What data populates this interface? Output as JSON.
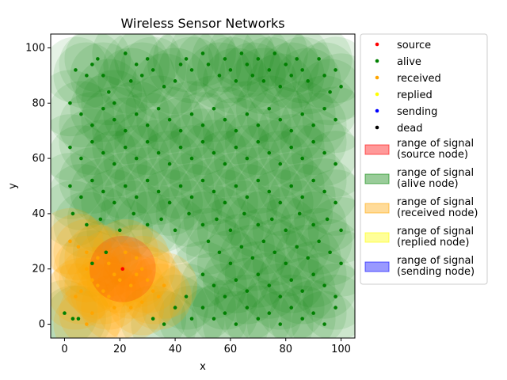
{
  "chart_data": {
    "type": "scatter",
    "title": "Wireless Sensor Networks",
    "xlabel": "x",
    "ylabel": "y",
    "xlim": [
      -5,
      105
    ],
    "ylim": [
      -5,
      105
    ],
    "xticks": [
      "0",
      "20",
      "40",
      "60",
      "80",
      "100"
    ],
    "yticks": [
      "0",
      "20",
      "40",
      "60",
      "80",
      "100"
    ],
    "grid": false,
    "legend_position": "outside-right",
    "signal_range": 12,
    "series": [
      {
        "name": "source",
        "color": "#ff0000",
        "points": [
          [
            21,
            20
          ]
        ]
      },
      {
        "name": "alive",
        "color": "#008000",
        "points": [
          [
            4,
            92
          ],
          [
            8,
            90
          ],
          [
            10,
            94
          ],
          [
            12,
            96
          ],
          [
            14,
            90
          ],
          [
            16,
            84
          ],
          [
            18,
            80
          ],
          [
            22,
            98
          ],
          [
            24,
            88
          ],
          [
            26,
            94
          ],
          [
            28,
            90
          ],
          [
            30,
            96
          ],
          [
            32,
            92
          ],
          [
            36,
            86
          ],
          [
            40,
            88
          ],
          [
            42,
            94
          ],
          [
            44,
            96
          ],
          [
            46,
            92
          ],
          [
            50,
            98
          ],
          [
            52,
            94
          ],
          [
            56,
            90
          ],
          [
            58,
            96
          ],
          [
            60,
            92
          ],
          [
            62,
            88
          ],
          [
            64,
            98
          ],
          [
            66,
            94
          ],
          [
            68,
            90
          ],
          [
            70,
            96
          ],
          [
            72,
            88
          ],
          [
            74,
            92
          ],
          [
            76,
            98
          ],
          [
            78,
            86
          ],
          [
            80,
            94
          ],
          [
            82,
            90
          ],
          [
            84,
            96
          ],
          [
            86,
            92
          ],
          [
            88,
            88
          ],
          [
            92,
            96
          ],
          [
            94,
            90
          ],
          [
            96,
            84
          ],
          [
            98,
            92
          ],
          [
            100,
            86
          ],
          [
            2,
            80
          ],
          [
            6,
            76
          ],
          [
            10,
            72
          ],
          [
            14,
            78
          ],
          [
            18,
            74
          ],
          [
            22,
            70
          ],
          [
            26,
            76
          ],
          [
            30,
            72
          ],
          [
            34,
            78
          ],
          [
            38,
            74
          ],
          [
            42,
            70
          ],
          [
            46,
            76
          ],
          [
            50,
            72
          ],
          [
            54,
            78
          ],
          [
            58,
            74
          ],
          [
            62,
            70
          ],
          [
            66,
            76
          ],
          [
            70,
            72
          ],
          [
            74,
            78
          ],
          [
            78,
            74
          ],
          [
            82,
            70
          ],
          [
            86,
            76
          ],
          [
            90,
            72
          ],
          [
            94,
            78
          ],
          [
            98,
            74
          ],
          [
            2,
            64
          ],
          [
            6,
            60
          ],
          [
            10,
            66
          ],
          [
            14,
            62
          ],
          [
            18,
            58
          ],
          [
            22,
            64
          ],
          [
            26,
            60
          ],
          [
            30,
            66
          ],
          [
            34,
            62
          ],
          [
            38,
            58
          ],
          [
            42,
            64
          ],
          [
            46,
            60
          ],
          [
            50,
            66
          ],
          [
            54,
            62
          ],
          [
            58,
            58
          ],
          [
            62,
            64
          ],
          [
            66,
            60
          ],
          [
            70,
            66
          ],
          [
            74,
            62
          ],
          [
            78,
            58
          ],
          [
            82,
            64
          ],
          [
            86,
            60
          ],
          [
            90,
            66
          ],
          [
            94,
            62
          ],
          [
            98,
            58
          ],
          [
            2,
            50
          ],
          [
            6,
            46
          ],
          [
            10,
            52
          ],
          [
            14,
            48
          ],
          [
            18,
            44
          ],
          [
            22,
            50
          ],
          [
            26,
            46
          ],
          [
            30,
            52
          ],
          [
            34,
            48
          ],
          [
            38,
            44
          ],
          [
            42,
            50
          ],
          [
            46,
            46
          ],
          [
            50,
            52
          ],
          [
            54,
            48
          ],
          [
            58,
            44
          ],
          [
            62,
            50
          ],
          [
            66,
            46
          ],
          [
            70,
            52
          ],
          [
            74,
            48
          ],
          [
            78,
            44
          ],
          [
            82,
            50
          ],
          [
            86,
            46
          ],
          [
            90,
            52
          ],
          [
            94,
            48
          ],
          [
            98,
            44
          ],
          [
            3,
            40
          ],
          [
            8,
            36
          ],
          [
            13,
            38
          ],
          [
            20,
            34
          ],
          [
            25,
            40
          ],
          [
            30,
            36
          ],
          [
            35,
            38
          ],
          [
            40,
            34
          ],
          [
            45,
            40
          ],
          [
            50,
            36
          ],
          [
            55,
            38
          ],
          [
            60,
            34
          ],
          [
            65,
            40
          ],
          [
            70,
            36
          ],
          [
            75,
            38
          ],
          [
            80,
            34
          ],
          [
            85,
            40
          ],
          [
            90,
            36
          ],
          [
            95,
            38
          ],
          [
            100,
            34
          ],
          [
            52,
            30
          ],
          [
            56,
            26
          ],
          [
            60,
            22
          ],
          [
            64,
            28
          ],
          [
            68,
            24
          ],
          [
            72,
            30
          ],
          [
            76,
            26
          ],
          [
            80,
            22
          ],
          [
            84,
            28
          ],
          [
            88,
            24
          ],
          [
            92,
            30
          ],
          [
            96,
            26
          ],
          [
            100,
            22
          ],
          [
            50,
            18
          ],
          [
            54,
            14
          ],
          [
            58,
            10
          ],
          [
            62,
            16
          ],
          [
            66,
            12
          ],
          [
            70,
            18
          ],
          [
            74,
            14
          ],
          [
            78,
            10
          ],
          [
            82,
            16
          ],
          [
            86,
            12
          ],
          [
            90,
            18
          ],
          [
            94,
            14
          ],
          [
            98,
            10
          ],
          [
            50,
            6
          ],
          [
            54,
            2
          ],
          [
            58,
            4
          ],
          [
            62,
            0
          ],
          [
            66,
            6
          ],
          [
            70,
            2
          ],
          [
            74,
            4
          ],
          [
            78,
            0
          ],
          [
            82,
            6
          ],
          [
            86,
            2
          ],
          [
            90,
            4
          ],
          [
            94,
            0
          ],
          [
            98,
            6
          ],
          [
            40,
            6
          ],
          [
            44,
            10
          ],
          [
            46,
            2
          ],
          [
            36,
            0
          ],
          [
            32,
            2
          ],
          [
            0,
            4
          ],
          [
            3,
            2
          ],
          [
            5,
            2
          ],
          [
            10,
            22
          ],
          [
            15,
            26
          ]
        ]
      },
      {
        "name": "received",
        "color": "#ffa500",
        "points": [
          [
            2,
            30
          ],
          [
            5,
            28
          ],
          [
            8,
            26
          ],
          [
            12,
            24
          ],
          [
            16,
            22
          ],
          [
            18,
            18
          ],
          [
            20,
            16
          ],
          [
            24,
            14
          ],
          [
            26,
            18
          ],
          [
            28,
            20
          ],
          [
            30,
            16
          ],
          [
            32,
            12
          ],
          [
            34,
            10
          ],
          [
            36,
            14
          ],
          [
            8,
            20
          ],
          [
            10,
            16
          ],
          [
            12,
            14
          ],
          [
            14,
            12
          ],
          [
            6,
            12
          ],
          [
            4,
            10
          ],
          [
            22,
            26
          ],
          [
            26,
            24
          ],
          [
            28,
            8
          ],
          [
            24,
            6
          ],
          [
            10,
            4
          ],
          [
            8,
            0
          ],
          [
            16,
            10
          ],
          [
            18,
            6
          ]
        ]
      },
      {
        "name": "replied",
        "color": "#ffff00",
        "points": []
      },
      {
        "name": "sending",
        "color": "#0000ff",
        "points": []
      },
      {
        "name": "dead",
        "color": "#000000",
        "points": []
      }
    ],
    "ranges": [
      {
        "name": "range of signal (source node)",
        "lines": [
          "range of signal",
          "(source node)"
        ],
        "color": "#ff0000"
      },
      {
        "name": "range of signal (alive node)",
        "lines": [
          "range of signal",
          "(alive node)"
        ],
        "color": "#008000"
      },
      {
        "name": "range of signal (received node)",
        "lines": [
          "range of signal",
          "(received node)"
        ],
        "color": "#ffa500"
      },
      {
        "name": "range of signal (replied node)",
        "lines": [
          "range of signal",
          "(replied node)"
        ],
        "color": "#ffff00"
      },
      {
        "name": "range of signal (sending node)",
        "lines": [
          "range of signal",
          "(sending node)"
        ],
        "color": "#0000ff"
      }
    ]
  }
}
